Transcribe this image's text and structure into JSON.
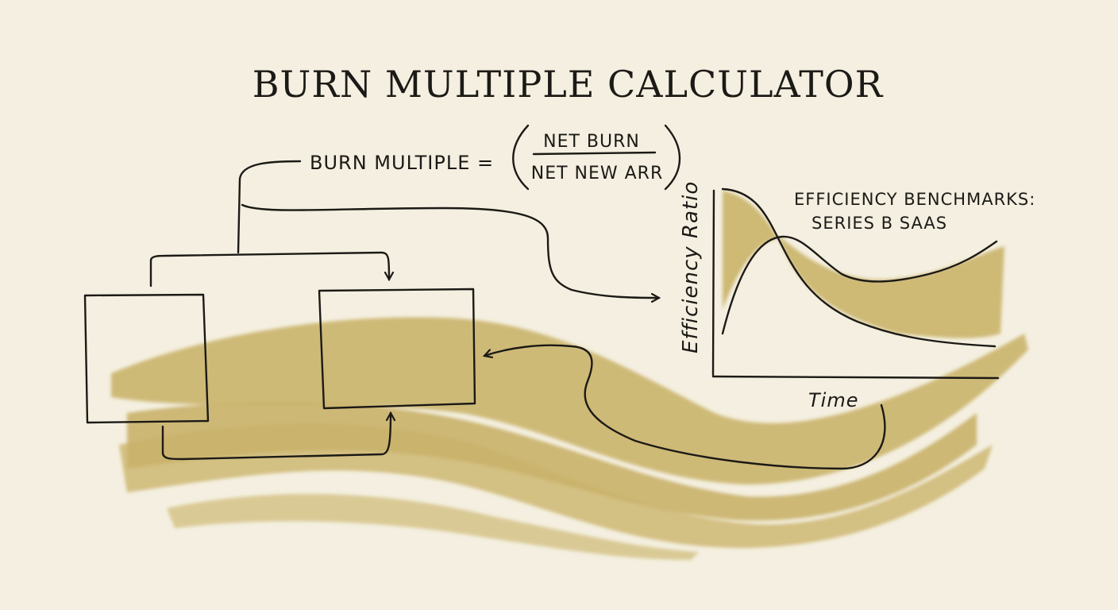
{
  "title": "BURN MULTIPLE CALCULATOR",
  "formula": {
    "lhs": "BURN MULTIPLE =",
    "numerator": "NET BURN",
    "denominator": "NET NEW ARR"
  },
  "chart": {
    "title_line1": "EFFICIENCY BENCHMARKS:",
    "title_line2": "SERIES B SAAS",
    "ylabel": "Efficiency Ratio",
    "xlabel": "Time"
  },
  "colors": {
    "background": "#f4efe0",
    "ink": "#1c1a16",
    "watercolor": "#c8b064"
  }
}
